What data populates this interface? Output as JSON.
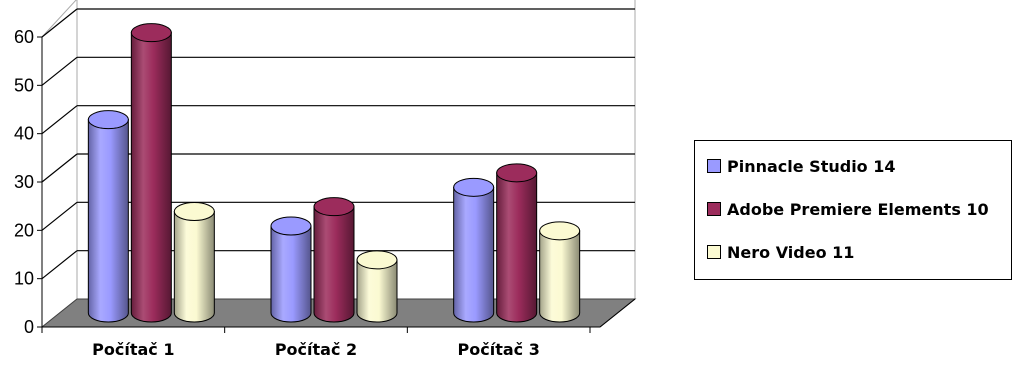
{
  "chart_data": {
    "type": "bar",
    "style": "3d-cylinder",
    "categories": [
      "Počítač 1",
      "Počítač 2",
      "Počítač 3"
    ],
    "series": [
      {
        "name": "Pinnacle Studio 14",
        "values": [
          40,
          18,
          26
        ],
        "color": "#9a9aff"
      },
      {
        "name": "Adobe Premiere Elements 10",
        "values": [
          58,
          22,
          29
        ],
        "color": "#9c2c5c"
      },
      {
        "name": "Nero Video 11",
        "values": [
          21,
          11,
          17
        ],
        "color": "#fbfad2"
      }
    ],
    "y_ticks": [
      "0",
      "10",
      "20",
      "30",
      "40",
      "50",
      "60"
    ],
    "ylim": [
      0,
      60
    ],
    "grid": true,
    "legend_position": "right"
  }
}
